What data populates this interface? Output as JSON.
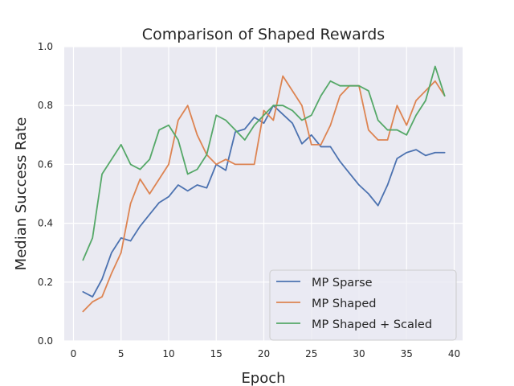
{
  "chart_data": {
    "type": "line",
    "title": "Comparison of Shaped Rewards",
    "xlabel": "Epoch",
    "ylabel": "Median Success Rate",
    "xlim": [
      0,
      40
    ],
    "ylim": [
      0.0,
      1.0
    ],
    "xticks": [
      0,
      5,
      10,
      15,
      20,
      25,
      30,
      35,
      40
    ],
    "xtick_labels": [
      "0",
      "5",
      "10",
      "15",
      "20",
      "25",
      "30",
      "35",
      "40"
    ],
    "yticks": [
      0.0,
      0.2,
      0.4,
      0.6,
      0.8,
      1.0
    ],
    "ytick_labels": [
      "0.0",
      "0.2",
      "0.4",
      "0.6",
      "0.8",
      "1.0"
    ],
    "grid": true,
    "legend_position": "lower-right",
    "x": [
      1,
      2,
      3,
      4,
      5,
      6,
      7,
      8,
      9,
      10,
      11,
      12,
      13,
      14,
      15,
      16,
      17,
      18,
      19,
      20,
      21,
      22,
      23,
      24,
      25,
      26,
      27,
      28,
      29,
      30,
      31,
      32,
      33,
      34,
      35,
      36,
      37,
      38,
      39
    ],
    "series": [
      {
        "name": "MP Sparse",
        "color": "#4c72b0",
        "values": [
          0.167,
          0.15,
          0.21,
          0.3,
          0.35,
          0.34,
          0.39,
          0.43,
          0.47,
          0.49,
          0.53,
          0.51,
          0.53,
          0.52,
          0.6,
          0.58,
          0.71,
          0.72,
          0.76,
          0.74,
          0.8,
          0.77,
          0.74,
          0.67,
          0.7,
          0.66,
          0.66,
          0.61,
          0.57,
          0.53,
          0.5,
          0.46,
          0.53,
          0.62,
          0.64,
          0.65,
          0.63,
          0.64,
          0.64
        ]
      },
      {
        "name": "MP Shaped",
        "color": "#dd8452",
        "values": [
          0.1,
          0.133,
          0.15,
          0.23,
          0.3,
          0.467,
          0.55,
          0.5,
          0.55,
          0.6,
          0.75,
          0.8,
          0.7,
          0.633,
          0.6,
          0.617,
          0.6,
          0.6,
          0.6,
          0.783,
          0.75,
          0.9,
          0.85,
          0.8,
          0.667,
          0.667,
          0.733,
          0.833,
          0.867,
          0.867,
          0.717,
          0.683,
          0.683,
          0.8,
          0.733,
          0.817,
          0.85,
          0.883,
          0.833
        ]
      },
      {
        "name": "MP Shaped + Scaled",
        "color": "#55a868",
        "values": [
          0.275,
          0.35,
          0.567,
          0.617,
          0.667,
          0.6,
          0.583,
          0.617,
          0.717,
          0.733,
          0.683,
          0.567,
          0.583,
          0.633,
          0.767,
          0.75,
          0.717,
          0.683,
          0.733,
          0.767,
          0.8,
          0.8,
          0.783,
          0.75,
          0.767,
          0.833,
          0.883,
          0.867,
          0.867,
          0.867,
          0.85,
          0.75,
          0.717,
          0.717,
          0.7,
          0.767,
          0.817,
          0.933,
          0.833
        ]
      }
    ]
  }
}
